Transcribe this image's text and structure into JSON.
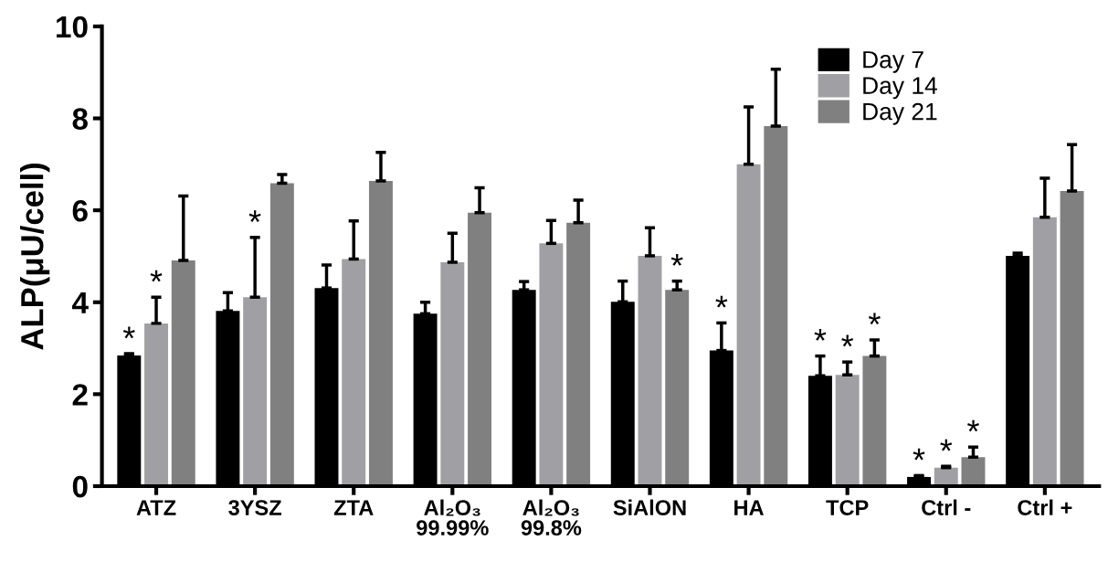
{
  "chart_data": {
    "type": "bar",
    "ylabel": "ALP(μU/cell)",
    "categories": [
      "ATZ",
      "3YSZ",
      "ZTA",
      "Al₂O₃\n99.99%",
      "Al₂O₃\n99.8%",
      "SiAlON",
      "HA",
      "TCP",
      "Ctrl -",
      "Ctrl +"
    ],
    "series": [
      {
        "name": "Day 7",
        "color": "#000000",
        "values": [
          2.84,
          3.81,
          4.31,
          3.75,
          4.27,
          4.01,
          2.95,
          2.4,
          0.2,
          5.01
        ],
        "errors": [
          [
            2.84,
            2.88
          ],
          [
            3.81,
            4.21
          ],
          [
            4.31,
            4.81
          ],
          [
            3.75,
            4.0
          ],
          [
            4.27,
            4.45
          ],
          [
            4.01,
            4.46
          ],
          [
            2.95,
            3.55
          ],
          [
            2.4,
            2.83
          ],
          [
            0.2,
            0.23
          ],
          [
            5.01,
            5.07
          ]
        ],
        "value_labels": [
          "*",
          null,
          null,
          null,
          null,
          null,
          "*",
          "*",
          "*",
          null
        ]
      },
      {
        "name": "Day 14",
        "color": "#a0a0a4",
        "values": [
          3.54,
          4.11,
          4.94,
          4.87,
          5.28,
          5.01,
          7.0,
          2.42,
          0.4,
          5.85
        ],
        "errors": [
          [
            3.54,
            4.11
          ],
          [
            4.11,
            5.41
          ],
          [
            4.94,
            5.77
          ],
          [
            4.87,
            5.5
          ],
          [
            5.28,
            5.78
          ],
          [
            5.01,
            5.62
          ],
          [
            7.0,
            8.25
          ],
          [
            2.42,
            2.7
          ],
          [
            0.4,
            0.43
          ],
          [
            5.85,
            6.7
          ]
        ],
        "value_labels": [
          "*",
          "*",
          null,
          null,
          null,
          null,
          null,
          "*",
          "*",
          null
        ]
      },
      {
        "name": "Day 21",
        "color": "#808080",
        "values": [
          4.91,
          6.59,
          6.64,
          5.95,
          5.73,
          4.27,
          7.83,
          2.83,
          0.63,
          6.42
        ],
        "errors": [
          [
            4.91,
            6.31
          ],
          [
            6.59,
            6.78
          ],
          [
            6.64,
            7.26
          ],
          [
            5.95,
            6.49
          ],
          [
            5.73,
            6.22
          ],
          [
            4.27,
            4.46
          ],
          [
            7.83,
            9.07
          ],
          [
            2.83,
            3.18
          ],
          [
            0.63,
            0.85
          ],
          [
            6.42,
            7.43
          ]
        ],
        "value_labels": [
          null,
          null,
          null,
          null,
          null,
          "*",
          null,
          "*",
          "*",
          null
        ]
      }
    ],
    "ylim": [
      0,
      10
    ],
    "yticks": [
      0,
      2,
      4,
      6,
      8,
      10
    ],
    "grid": false,
    "legend": "top right"
  }
}
